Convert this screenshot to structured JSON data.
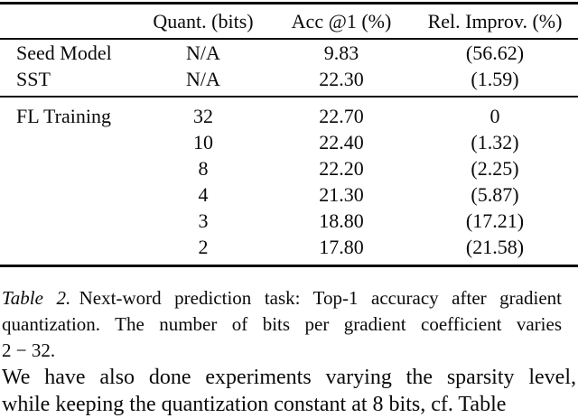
{
  "colors": {
    "background": "#ffffff",
    "text": "#0a0a0a",
    "rule": "#0a0a0a"
  },
  "table": {
    "headers": [
      "",
      "Quant. (bits)",
      "Acc @1 (%)",
      "Rel. Improv. (%)"
    ],
    "groups": [
      {
        "rows": [
          [
            "Seed Model",
            "N/A",
            "9.83",
            "(56.62)"
          ],
          [
            "SST",
            "N/A",
            "22.30",
            "(1.59)"
          ]
        ]
      },
      {
        "rows": [
          [
            "FL Training",
            "32",
            "22.70",
            "0"
          ],
          [
            "",
            "10",
            "22.40",
            "(1.32)"
          ],
          [
            "",
            "8",
            "22.20",
            "(2.25)"
          ],
          [
            "",
            "4",
            "21.30",
            "(5.87)"
          ],
          [
            "",
            "3",
            "18.80",
            "(17.21)"
          ],
          [
            "",
            "2",
            "17.80",
            "(21.58)"
          ]
        ]
      }
    ]
  },
  "caption": {
    "label": "Table 2.",
    "lines": [
      "Next-word prediction task: Top-1 accuracy after gradient",
      "quantization. The number of bits per gradient coefficient varies",
      "2 − 32."
    ]
  },
  "paragraph": {
    "lines": [
      "We have also done experiments varying the sparsity level,",
      "while keeping the quantization constant at 8 bits, cf. Table"
    ]
  }
}
